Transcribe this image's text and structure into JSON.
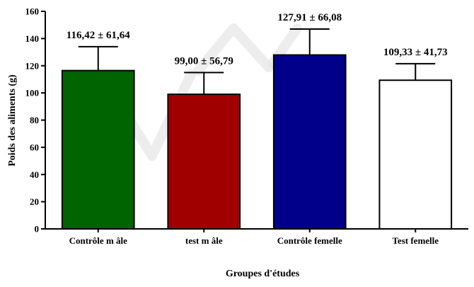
{
  "chart_data": {
    "type": "bar",
    "title": "",
    "xlabel": "Groupes d'études",
    "ylabel": "Poids des aliments (g)",
    "ylim": [
      0,
      160
    ],
    "yticks": [
      0,
      20,
      40,
      60,
      80,
      100,
      120,
      140,
      160
    ],
    "categories": [
      "Contrôle m âle",
      "test m âle",
      "Contrôle femelle",
      "Test  femelle"
    ],
    "values": [
      116.42,
      99.0,
      127.91,
      109.33
    ],
    "error_upper": [
      134,
      115,
      147,
      121.5
    ],
    "data_labels": [
      "116,42 ± 61,64",
      "99,00 ± 56,79",
      "127,91 ± 66,08",
      "109,33 ± 41,73"
    ],
    "colors": [
      "#006400",
      "#a00000",
      "#00008b",
      "#ffffff"
    ],
    "grid": false,
    "legend": "none"
  }
}
